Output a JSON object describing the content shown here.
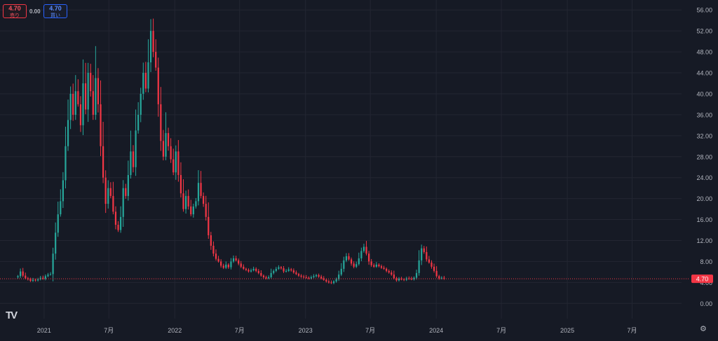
{
  "trade": {
    "sell_price": "4.70",
    "sell_label": "売り",
    "spread": "0.00",
    "buy_price": "4.70",
    "buy_label": "買い"
  },
  "current_price": "4.70",
  "logo_text": "TV",
  "colors": {
    "up": "#26a69a",
    "down": "#f23645",
    "price_line": "#f23645",
    "grid": "#232632",
    "text": "#b2b5be"
  },
  "icons": {
    "settings": "gear-icon",
    "logo": "tradingview-logo"
  },
  "chart_data": {
    "type": "candlestick",
    "ylim": [
      -2.9,
      57.9
    ],
    "y_ticks": [
      "0.00",
      "4.00",
      "8.00",
      "12.00",
      "16.00",
      "20.00",
      "24.00",
      "28.00",
      "32.00",
      "36.00",
      "40.00",
      "44.00",
      "48.00",
      "52.00",
      "56.00"
    ],
    "x_range": [
      "2020-08-31",
      "2025-11-16"
    ],
    "x_ticks": [
      {
        "label": "2021",
        "date": "2021-01-01"
      },
      {
        "label": "7月",
        "date": "2021-07-01"
      },
      {
        "label": "2022",
        "date": "2022-01-01"
      },
      {
        "label": "7月",
        "date": "2022-07-01"
      },
      {
        "label": "2023",
        "date": "2023-01-01"
      },
      {
        "label": "7月",
        "date": "2023-07-01"
      },
      {
        "label": "2024",
        "date": "2024-01-01"
      },
      {
        "label": "7月",
        "date": "2024-07-01"
      },
      {
        "label": "2025",
        "date": "2025-01-01"
      },
      {
        "label": "7月",
        "date": "2025-07-01"
      }
    ],
    "series_start": "2020-10-20",
    "interval_days": 7,
    "closes": [
      5.2,
      6.1,
      5.3,
      4.8,
      4.6,
      4.3,
      4.5,
      4.4,
      4.6,
      4.9,
      4.7,
      5.2,
      5.5,
      5.6,
      9.5,
      13.5,
      17.0,
      19.5,
      23.5,
      30.0,
      35.0,
      40.0,
      36.0,
      40.5,
      38.0,
      34.0,
      42.0,
      37.0,
      44.0,
      40.5,
      36.0,
      43.0,
      38.0,
      30.0,
      24.0,
      19.0,
      22.0,
      20.5,
      17.5,
      15.0,
      14.0,
      16.5,
      22.0,
      20.5,
      24.5,
      29.0,
      26.0,
      33.0,
      36.0,
      40.0,
      44.0,
      41.0,
      46.0,
      52.0,
      48.0,
      45.0,
      38.0,
      31.0,
      28.0,
      32.5,
      30.0,
      27.5,
      25.0,
      29.0,
      24.5,
      21.0,
      18.0,
      20.5,
      18.5,
      17.0,
      18.5,
      19.5,
      23.0,
      20.5,
      19.0,
      16.5,
      13.0,
      11.0,
      9.5,
      8.5,
      8.0,
      7.2,
      6.8,
      7.4,
      6.9,
      8.0,
      8.6,
      8.2,
      7.6,
      7.0,
      6.6,
      6.4,
      6.1,
      6.3,
      6.6,
      6.2,
      5.8,
      5.3,
      5.0,
      4.8,
      5.0,
      5.8,
      6.2,
      6.6,
      6.9,
      6.7,
      6.1,
      6.2,
      6.5,
      6.3,
      5.9,
      5.6,
      5.3,
      5.1,
      5.0,
      4.9,
      4.8,
      5.0,
      5.2,
      5.4,
      5.1,
      4.8,
      4.5,
      4.2,
      4.0,
      3.9,
      4.2,
      4.6,
      5.5,
      6.6,
      8.2,
      9.0,
      8.4,
      7.6,
      7.0,
      7.5,
      8.6,
      10.0,
      10.8,
      9.5,
      8.0,
      7.3,
      7.0,
      7.4,
      7.1,
      6.8,
      6.6,
      6.2,
      5.9,
      5.5,
      4.8,
      4.4,
      4.7,
      4.6,
      4.5,
      4.8,
      4.7,
      4.6,
      4.9,
      5.8,
      8.2,
      10.5,
      9.8,
      8.4,
      7.8,
      7.0,
      6.2,
      5.2,
      4.8,
      4.9,
      4.7
    ]
  }
}
